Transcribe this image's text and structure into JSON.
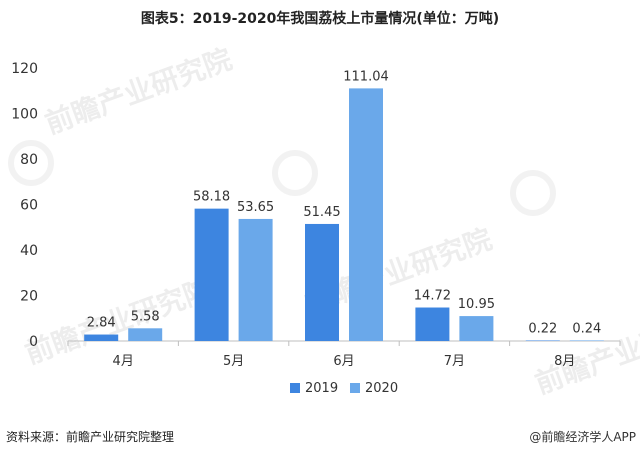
{
  "chart_data": {
    "type": "bar",
    "title": "图表5：2019-2020年我国荔枝上市量情况(单位：万吨)",
    "categories": [
      "4月",
      "5月",
      "6月",
      "7月",
      "8月"
    ],
    "series": [
      {
        "name": "2019",
        "values": [
          2.84,
          58.18,
          51.45,
          14.72,
          0.22
        ],
        "color": "#3d85e0"
      },
      {
        "name": "2020",
        "values": [
          5.58,
          53.65,
          111.04,
          10.95,
          0.24
        ],
        "color": "#6aa8ea"
      }
    ],
    "yticks": [
      0,
      20,
      40,
      60,
      80,
      100,
      120
    ],
    "ylim": [
      0,
      120
    ],
    "grid": false,
    "legend_position": "bottom-center"
  },
  "footer": {
    "source": "资料来源：前瞻产业研究院整理",
    "credit": "@前瞻经济学人APP"
  },
  "watermark": {
    "brand": "前瞻产业研究院"
  }
}
